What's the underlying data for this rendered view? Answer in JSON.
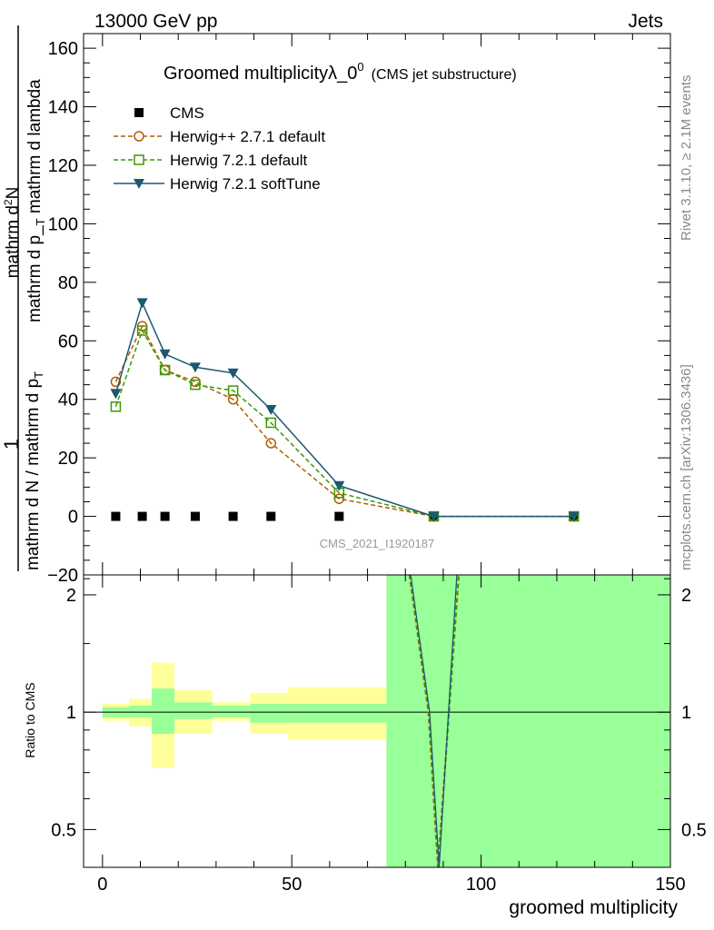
{
  "header": {
    "energy": "13000 GeV pp",
    "category": "Jets"
  },
  "side_labels": {
    "rivet": "Rivet 3.1.10, ≥ 2.1M events",
    "source": "mcplots.cern.ch [arXiv:1306.3436]"
  },
  "watermark": "CMS_2021_I1920187",
  "chart_data": [
    {
      "type": "line",
      "title": "Groomed multiplicityλ_0",
      "title_superscript": "0",
      "subtitle": "(CMS jet substructure)",
      "ylabel_parts": [
        "1",
        "mathrm d N / mathrm d p",
        "mathrm d p",
        "mathrm d lambda",
        "mathrm d",
        "N",
        "mathrm d p",
        "mathrm d lambda"
      ],
      "ylabel": {
        "numerator": [
          "mathrm d",
          "N"
        ],
        "numerator_upper": "2",
        "numerator_tail": "mathrm d p_",
        "numerator_sub": "T",
        "numerator_end": "mathrm d lambda",
        "prefix": "1",
        "denominator": "mathrm d N / mathrm d p",
        "denominator_sub": "T"
      },
      "xlim": [
        -5,
        150
      ],
      "ylim": [
        -20,
        165
      ],
      "yticks": [
        -20,
        0,
        20,
        40,
        60,
        80,
        100,
        120,
        140,
        160
      ],
      "legend_position": "top-left",
      "series": [
        {
          "name": "CMS",
          "marker": "square-filled",
          "color": "#000000",
          "x": [
            3.5,
            10.5,
            16.5,
            24.5,
            34.5,
            44.5,
            62.5,
            87.5,
            124.5
          ],
          "y": [
            0,
            0,
            0,
            0,
            0,
            0,
            0,
            0,
            0
          ]
        },
        {
          "name": "Herwig++ 2.7.1 default",
          "marker": "circle-open",
          "line": "dashed",
          "color": "#b35c00",
          "x": [
            3.5,
            10.5,
            16.5,
            24.5,
            34.5,
            44.5,
            62.5,
            87.5,
            124.5
          ],
          "y": [
            46,
            65,
            50,
            46,
            40,
            25,
            6,
            0,
            0
          ]
        },
        {
          "name": "Herwig 7.2.1 default",
          "marker": "square-open",
          "line": "dashed",
          "color": "#3b9a00",
          "x": [
            3.5,
            10.5,
            16.5,
            24.5,
            34.5,
            44.5,
            62.5,
            87.5,
            124.5
          ],
          "y": [
            37.5,
            63.5,
            50,
            45,
            43,
            32,
            8,
            0,
            0
          ]
        },
        {
          "name": "Herwig 7.2.1 softTune",
          "marker": "triangle-down-filled",
          "line": "solid",
          "color": "#1c5870",
          "x": [
            3.5,
            10.5,
            16.5,
            24.5,
            34.5,
            44.5,
            62.5,
            87.5,
            124.5
          ],
          "y": [
            42,
            73,
            55.5,
            51,
            49,
            36.5,
            10.5,
            0,
            0
          ]
        }
      ]
    },
    {
      "type": "line",
      "ylabel": "Ratio to CMS",
      "xlabel": "groomed multiplicity",
      "xlim": [
        -5,
        150
      ],
      "xticks": [
        0,
        50,
        100,
        150
      ],
      "ylim": [
        0.4,
        2.25
      ],
      "y_scale": "log",
      "yticks": [
        0.5,
        1,
        2
      ],
      "reference": 1,
      "bands": [
        {
          "x0": 0,
          "x1": 7,
          "inner": [
            0.97,
            1.03
          ],
          "outer": [
            0.95,
            1.05
          ]
        },
        {
          "x0": 7,
          "x1": 13,
          "inner": [
            0.97,
            1.04
          ],
          "outer": [
            0.92,
            1.08
          ]
        },
        {
          "x0": 13,
          "x1": 19,
          "inner": [
            0.88,
            1.15
          ],
          "outer": [
            0.72,
            1.34
          ]
        },
        {
          "x0": 19,
          "x1": 29,
          "inner": [
            0.96,
            1.06
          ],
          "outer": [
            0.88,
            1.14
          ]
        },
        {
          "x0": 29,
          "x1": 39,
          "inner": [
            0.97,
            1.04
          ],
          "outer": [
            0.95,
            1.06
          ]
        },
        {
          "x0": 39,
          "x1": 49,
          "inner": [
            0.94,
            1.05
          ],
          "outer": [
            0.88,
            1.12
          ]
        },
        {
          "x0": 49,
          "x1": 75,
          "inner": [
            0.94,
            1.05
          ],
          "outer": [
            0.85,
            1.16
          ]
        },
        {
          "x0": 75,
          "x1": 150,
          "inner": [
            0.4,
            2.25
          ],
          "outer": [
            0.4,
            2.25
          ]
        }
      ],
      "series": [
        {
          "name": "Herwig++ 2.7.1 default",
          "color": "#b35c00",
          "line": "dashed",
          "x": [
            81,
            86,
            88.5,
            94
          ],
          "y": [
            2.25,
            1.0,
            0.4,
            2.25
          ]
        },
        {
          "name": "Herwig 7.2.1 default",
          "color": "#3b9a00",
          "line": "dashed",
          "x": [
            81.2,
            86.2,
            88.7,
            94.2
          ],
          "y": [
            2.25,
            1.0,
            0.4,
            2.25
          ]
        },
        {
          "name": "Herwig 7.2.1 softTune",
          "color": "#1c5870",
          "line": "solid",
          "x": [
            81.4,
            86.4,
            88.9,
            93.6
          ],
          "y": [
            2.25,
            1.0,
            0.4,
            2.25
          ]
        }
      ]
    }
  ],
  "colors": {
    "band_inner": "#99ff99",
    "band_outer": "#ffff99",
    "axis": "#000000",
    "watermark": "#999999",
    "side_text": "#888888"
  }
}
